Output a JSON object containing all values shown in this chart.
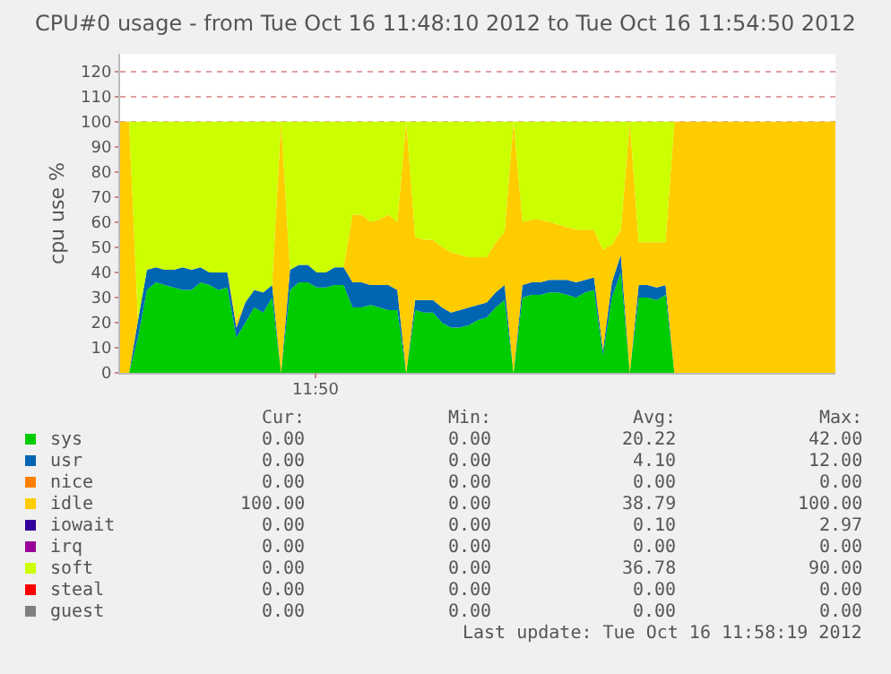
{
  "chart_data": {
    "type": "area",
    "stacked": true,
    "title": "CPU#0 usage - from Tue Oct 16 11:48:10 2012 to Tue Oct 16 11:54:50 2012",
    "ylabel": "cpu use %",
    "categories": [
      null,
      null,
      null,
      null,
      null,
      null,
      null,
      null,
      null,
      null,
      null,
      null,
      null,
      null,
      null,
      null,
      null,
      null,
      null,
      null,
      null,
      null,
      null,
      null,
      null,
      null,
      null,
      null,
      null,
      null,
      null,
      null,
      null,
      null,
      null,
      null,
      null,
      null,
      null,
      null,
      null,
      null,
      null,
      null,
      null,
      null,
      null,
      null,
      null,
      null,
      null,
      null,
      null,
      null,
      null,
      null,
      null,
      null,
      null,
      null,
      null,
      null,
      null,
      null,
      null,
      null,
      null,
      null,
      null,
      null,
      null,
      null,
      null,
      null,
      null,
      null,
      null,
      null,
      null,
      null,
      null
    ],
    "series": [
      {
        "name": "sys",
        "color": "#00cc00",
        "values": [
          0,
          0,
          14,
          33,
          36,
          35,
          34,
          33,
          33,
          36,
          35,
          33,
          34,
          14,
          20,
          26,
          24,
          30,
          0,
          33,
          36,
          36,
          34,
          34,
          35,
          35,
          26,
          26,
          27,
          26,
          25,
          25,
          0,
          25,
          24,
          24,
          20,
          18,
          18,
          19,
          21,
          22,
          26,
          29,
          0,
          30,
          31,
          31,
          32,
          32,
          31,
          30,
          32,
          33,
          7,
          30,
          40,
          0,
          30,
          30,
          29,
          31,
          0,
          0,
          0,
          0,
          0,
          0,
          0,
          0,
          0,
          0,
          0,
          0,
          0,
          0,
          0,
          0,
          0,
          0,
          0
        ]
      },
      {
        "name": "usr",
        "color": "#0066b3",
        "values": [
          0,
          0,
          7,
          8,
          6,
          6,
          7,
          9,
          8,
          6,
          5,
          7,
          6,
          4,
          8,
          7,
          8,
          5,
          0,
          8,
          7,
          7,
          6,
          6,
          7,
          7,
          10,
          10,
          8,
          9,
          10,
          8,
          0,
          4,
          5,
          5,
          6,
          6,
          7,
          7,
          6,
          6,
          6,
          6,
          0,
          5,
          5,
          5,
          5,
          5,
          6,
          6,
          5,
          5,
          2,
          6,
          7,
          0,
          5,
          5,
          5,
          4,
          0,
          0,
          0,
          0,
          0,
          0,
          0,
          0,
          0,
          0,
          0,
          0,
          0,
          0,
          0,
          0,
          0,
          0,
          0
        ]
      },
      {
        "name": "nice",
        "color": "#ff8000",
        "values": [
          null,
          null,
          null,
          null,
          null,
          null,
          null,
          null,
          null,
          null,
          null,
          null,
          null,
          null,
          null,
          null,
          null,
          null,
          null,
          null,
          null,
          null,
          null,
          null,
          null,
          null,
          null,
          null,
          null,
          null,
          null,
          null,
          null,
          null,
          null,
          null,
          null,
          null,
          null,
          null,
          null,
          null,
          null,
          null,
          null,
          null,
          null,
          null,
          null,
          null,
          null,
          null,
          null,
          null,
          null,
          null,
          null,
          null,
          null,
          null,
          null,
          null,
          null,
          null,
          null,
          null,
          null,
          null,
          null,
          null,
          null,
          null,
          null,
          null,
          null,
          null,
          null,
          null,
          null,
          null,
          null
        ]
      },
      {
        "name": "idle",
        "color": "#ffcc00",
        "values": [
          100,
          100,
          0,
          0,
          0,
          0,
          0,
          0,
          0,
          0,
          0,
          0,
          0,
          3,
          0,
          0,
          0,
          0,
          100,
          0,
          0,
          0,
          0,
          0,
          0,
          0,
          27,
          27,
          25,
          26,
          28,
          27,
          100,
          25,
          24,
          24,
          24,
          24,
          22,
          20,
          19,
          18,
          20,
          21,
          100,
          25,
          25,
          25,
          23,
          22,
          21,
          21,
          20,
          19,
          40,
          15,
          10,
          100,
          17,
          17,
          18,
          17,
          100,
          100,
          100,
          100,
          100,
          100,
          100,
          100,
          100,
          100,
          100,
          100,
          100,
          100,
          100,
          100,
          100,
          100,
          100
        ]
      },
      {
        "name": "iowait",
        "color": "#330099",
        "values": [
          null,
          null,
          null,
          null,
          null,
          null,
          null,
          null,
          null,
          null,
          null,
          null,
          null,
          null,
          null,
          null,
          null,
          null,
          null,
          null,
          null,
          null,
          null,
          null,
          null,
          null,
          null,
          null,
          null,
          null,
          null,
          null,
          null,
          null,
          null,
          null,
          null,
          null,
          null,
          null,
          null,
          null,
          null,
          null,
          null,
          null,
          null,
          null,
          null,
          null,
          null,
          null,
          null,
          null,
          null,
          null,
          null,
          null,
          null,
          null,
          null,
          null,
          null,
          null,
          null,
          null,
          null,
          null,
          null,
          null,
          null,
          null,
          null,
          null,
          null,
          null,
          null,
          null,
          null,
          null,
          null
        ]
      },
      {
        "name": "irq",
        "color": "#990099",
        "values": [
          null,
          null,
          null,
          null,
          null,
          null,
          null,
          null,
          null,
          null,
          null,
          null,
          null,
          null,
          null,
          null,
          null,
          null,
          null,
          null,
          null,
          null,
          null,
          null,
          null,
          null,
          null,
          null,
          null,
          null,
          null,
          null,
          null,
          null,
          null,
          null,
          null,
          null,
          null,
          null,
          null,
          null,
          null,
          null,
          null,
          null,
          null,
          null,
          null,
          null,
          null,
          null,
          null,
          null,
          null,
          null,
          null,
          null,
          null,
          null,
          null,
          null,
          null,
          null,
          null,
          null,
          null,
          null,
          null,
          null,
          null,
          null,
          null,
          null,
          null,
          null,
          null,
          null,
          null,
          null,
          null
        ]
      },
      {
        "name": "soft",
        "color": "#ccff00",
        "values": [
          0,
          0,
          79,
          59,
          58,
          59,
          59,
          58,
          59,
          58,
          60,
          60,
          60,
          79,
          72,
          67,
          68,
          65,
          0,
          59,
          57,
          57,
          60,
          60,
          58,
          58,
          37,
          37,
          40,
          39,
          37,
          40,
          0,
          46,
          47,
          47,
          50,
          52,
          53,
          54,
          54,
          54,
          48,
          44,
          0,
          40,
          39,
          39,
          40,
          41,
          42,
          43,
          43,
          43,
          51,
          49,
          43,
          0,
          48,
          48,
          48,
          48,
          0,
          0,
          0,
          0,
          0,
          0,
          0,
          0,
          0,
          0,
          0,
          0,
          0,
          0,
          0,
          0,
          0,
          0,
          0
        ]
      },
      {
        "name": "steal",
        "color": "#ff0000",
        "values": [
          null,
          null,
          null,
          null,
          null,
          null,
          null,
          null,
          null,
          null,
          null,
          null,
          null,
          null,
          null,
          null,
          null,
          null,
          null,
          null,
          null,
          null,
          null,
          null,
          null,
          null,
          null,
          null,
          null,
          null,
          null,
          null,
          null,
          null,
          null,
          null,
          null,
          null,
          null,
          null,
          null,
          null,
          null,
          null,
          null,
          null,
          null,
          null,
          null,
          null,
          null,
          null,
          null,
          null,
          null,
          null,
          null,
          null,
          null,
          null,
          null,
          null,
          null,
          null,
          null,
          null,
          null,
          null,
          null,
          null,
          null,
          null,
          null,
          null,
          null,
          null,
          null,
          null,
          null,
          null,
          null
        ]
      },
      {
        "name": "guest",
        "color": "#808080",
        "values": [
          null,
          null,
          null,
          null,
          null,
          null,
          null,
          null,
          null,
          null,
          null,
          null,
          null,
          null,
          null,
          null,
          null,
          null,
          null,
          null,
          null,
          null,
          null,
          null,
          null,
          null,
          null,
          null,
          null,
          null,
          null,
          null,
          null,
          null,
          null,
          null,
          null,
          null,
          null,
          null,
          null,
          null,
          null,
          null,
          null,
          null,
          null,
          null,
          null,
          null,
          null,
          null,
          null,
          null,
          null,
          null,
          null,
          null,
          null,
          null,
          null,
          null,
          null,
          null,
          null,
          null,
          null,
          null,
          null,
          null,
          null,
          null,
          null,
          null,
          null,
          null,
          null,
          null,
          null,
          null,
          null
        ]
      }
    ],
    "ylim": [
      0,
      127
    ],
    "yticks": [
      0,
      10,
      20,
      30,
      40,
      50,
      60,
      70,
      80,
      90,
      100,
      110,
      120
    ],
    "grid": "y",
    "legend": "bottom",
    "annotations": [
      "Cur:",
      "Min:",
      "Avg:",
      "Max:",
      "0.00",
      "0.00",
      "20.22",
      "42.00",
      "0.00",
      "0.00",
      "4.10",
      "12.00",
      "0.00",
      "0.00",
      "0.00",
      "0.00",
      "100.00",
      "0.00",
      "38.79",
      "100.00",
      "0.00",
      "0.00",
      "0.10",
      "2.97",
      "0.00",
      "0.00",
      "0.00",
      "0.00",
      "0.00",
      "0.00",
      "36.78",
      "90.00",
      "0.00",
      "0.00",
      "0.00",
      "0.00",
      "0.00",
      "0.00",
      "0.00",
      "0.00",
      "Last update: Tue Oct 16 11:58:19 2012",
      "11:50"
    ]
  }
}
